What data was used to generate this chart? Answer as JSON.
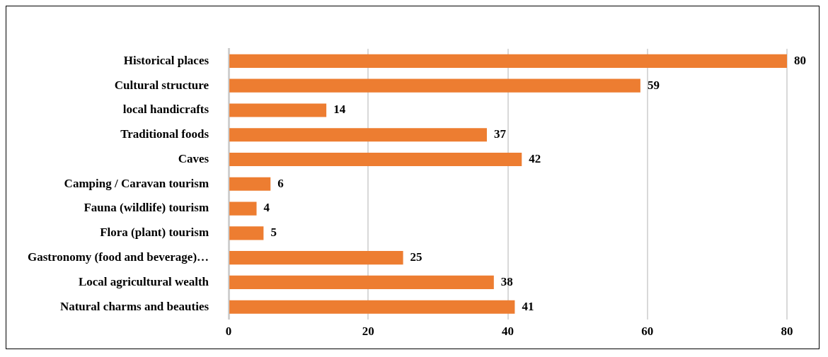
{
  "chart_data": {
    "type": "bar",
    "orientation": "horizontal",
    "categories": [
      "Historical places",
      "Cultural structure",
      "local handicrafts",
      "Traditional foods",
      "Caves",
      "Camping / Caravan tourism",
      "Fauna (wildlife) tourism",
      "Flora (plant) tourism",
      "Gastronomy (food and beverage)…",
      "Local agricultural wealth",
      "Natural charms and beauties"
    ],
    "values": [
      80,
      59,
      14,
      37,
      42,
      6,
      4,
      5,
      25,
      38,
      41
    ],
    "color": "#ed7d31",
    "xlim": [
      0,
      80
    ],
    "xticks": [
      0,
      20,
      40,
      60,
      80
    ],
    "grid": "x",
    "data_labels": true,
    "legend": false
  }
}
